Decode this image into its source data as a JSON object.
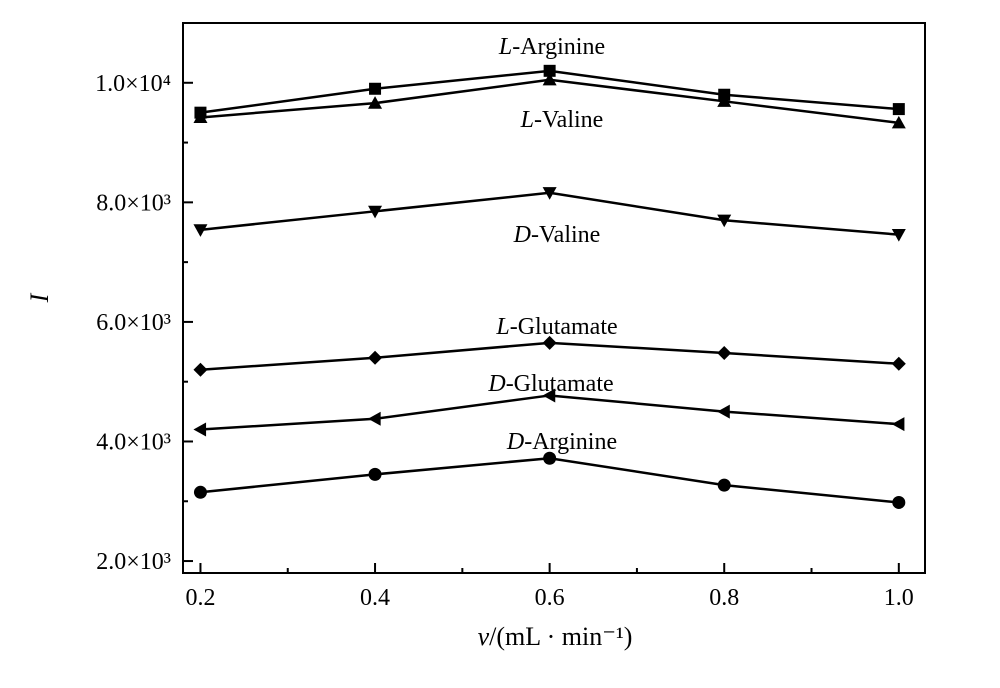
{
  "chart_data": {
    "type": "line",
    "xlabel": "v/(mL · min⁻¹)",
    "ylabel": "I",
    "xlim": [
      0.18,
      1.03
    ],
    "ylim": [
      1800,
      11000
    ],
    "x": [
      0.2,
      0.4,
      0.6,
      0.8,
      1.0
    ],
    "x_ticks": [
      {
        "value": 0.2,
        "label": "0.2"
      },
      {
        "value": 0.4,
        "label": "0.4"
      },
      {
        "value": 0.6,
        "label": "0.6"
      },
      {
        "value": 0.8,
        "label": "0.8"
      },
      {
        "value": 1.0,
        "label": "1.0"
      }
    ],
    "x_minor_ticks": [
      0.3,
      0.5,
      0.7,
      0.9
    ],
    "y_ticks": [
      {
        "value": 2000,
        "label": "2.0×10³"
      },
      {
        "value": 4000,
        "label": "4.0×10³"
      },
      {
        "value": 6000,
        "label": "6.0×10³"
      },
      {
        "value": 8000,
        "label": "8.0×10³"
      },
      {
        "value": 10000,
        "label": "1.0×10⁴"
      }
    ],
    "y_minor_ticks": [
      3000,
      5000,
      7000,
      9000
    ],
    "grid": false,
    "series": [
      {
        "name": "L-Arginine",
        "marker": "square",
        "values": [
          9500,
          9900,
          10200,
          9800,
          9560
        ]
      },
      {
        "name": "L-Valine",
        "marker": "triangle-up",
        "values": [
          9420,
          9660,
          10050,
          9690,
          9330
        ]
      },
      {
        "name": "D-Valine",
        "marker": "triangle-down",
        "values": [
          7540,
          7850,
          8160,
          7700,
          7460
        ]
      },
      {
        "name": "L-Glutamate",
        "marker": "diamond",
        "values": [
          5200,
          5400,
          5650,
          5480,
          5300
        ]
      },
      {
        "name": "D-Glutamate",
        "marker": "triangle-left",
        "values": [
          4200,
          4380,
          4770,
          4500,
          4290
        ]
      },
      {
        "name": "D-Arginine",
        "marker": "circle",
        "values": [
          3150,
          3450,
          3720,
          3270,
          2980
        ]
      }
    ]
  }
}
